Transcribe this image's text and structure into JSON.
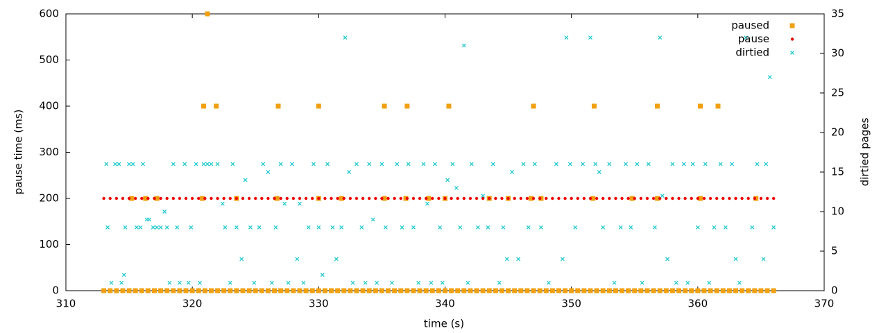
{
  "chart_data": {
    "type": "scatter",
    "xlabel": "time (s)",
    "ylabel": "pause time (ms)",
    "y2label": "dirtied pages",
    "xlim": [
      310,
      370
    ],
    "xticks": [
      310,
      320,
      330,
      340,
      350,
      360,
      370
    ],
    "ylim": [
      0,
      600
    ],
    "yticks": [
      0,
      100,
      200,
      300,
      400,
      500,
      600
    ],
    "y2lim": [
      0,
      35
    ],
    "y2ticks": [
      0,
      5,
      10,
      15,
      20,
      25,
      30,
      35
    ],
    "grid": false,
    "legend": "top-right",
    "series": [
      {
        "name": "paused",
        "color": "#f0a010",
        "marker": "square",
        "x": [
          313,
          313.5,
          314,
          314.5,
          315,
          315.5,
          316,
          316.5,
          317,
          317.5,
          318,
          318.5,
          319,
          319.5,
          320,
          320.5,
          321,
          321.5,
          322,
          322.5,
          323,
          323.5,
          324,
          324.5,
          325,
          325.5,
          326,
          326.5,
          327,
          327.5,
          328,
          328.5,
          329,
          329.5,
          330,
          330.5,
          331,
          331.5,
          332,
          332.5,
          333,
          333.5,
          334,
          334.5,
          335,
          335.5,
          336,
          336.5,
          337,
          337.5,
          338,
          338.5,
          339,
          339.5,
          340,
          340.5,
          341,
          341.5,
          342,
          342.5,
          343,
          343.5,
          344,
          344.5,
          345,
          345.5,
          346,
          346.5,
          347,
          347.5,
          348,
          348.5,
          349,
          349.5,
          350,
          350.5,
          351,
          351.5,
          352,
          352.5,
          353,
          353.5,
          354,
          354.5,
          355,
          355.5,
          356,
          356.5,
          357,
          357.5,
          358,
          358.5,
          359,
          359.5,
          360,
          360.5,
          361,
          361.5,
          362,
          362.5,
          363,
          363.5,
          364,
          364.5,
          365,
          365.5,
          366,
          320.9,
          321.2,
          321.9,
          326.8,
          330,
          335.2,
          337,
          340.3,
          347,
          351.8,
          356.8,
          360.2,
          361.6,
          315.2,
          316.3,
          317.2,
          320.8,
          323.5,
          326.7,
          330,
          331.8,
          335.2,
          336.9,
          338.7,
          340,
          343.5,
          345,
          346.8,
          347.6,
          351.7,
          354.8,
          356.8,
          360.2,
          364.6
        ],
        "values": [
          0,
          0,
          0,
          0,
          0,
          0,
          0,
          0,
          0,
          0,
          0,
          0,
          0,
          0,
          0,
          0,
          0,
          0,
          0,
          0,
          0,
          0,
          0,
          0,
          0,
          0,
          0,
          0,
          0,
          0,
          0,
          0,
          0,
          0,
          0,
          0,
          0,
          0,
          0,
          0,
          0,
          0,
          0,
          0,
          0,
          0,
          0,
          0,
          0,
          0,
          0,
          0,
          0,
          0,
          0,
          0,
          0,
          0,
          0,
          0,
          0,
          0,
          0,
          0,
          0,
          0,
          0,
          0,
          0,
          0,
          0,
          0,
          0,
          0,
          0,
          0,
          0,
          0,
          0,
          0,
          0,
          0,
          0,
          0,
          0,
          0,
          0,
          0,
          0,
          0,
          0,
          0,
          0,
          0,
          0,
          0,
          0,
          0,
          0,
          0,
          0,
          0,
          0,
          0,
          0,
          0,
          0,
          400,
          600,
          400,
          400,
          400,
          400,
          400,
          400,
          400,
          400,
          400,
          400,
          400,
          200,
          200,
          200,
          200,
          200,
          200,
          200,
          200,
          200,
          200,
          200,
          200,
          200,
          200,
          200,
          200,
          200,
          200,
          200,
          200,
          200
        ]
      },
      {
        "name": "pause",
        "color": "#ee0000",
        "marker": "circle",
        "x": [
          313,
          313.5,
          314,
          314.5,
          315,
          315.5,
          316,
          316.5,
          317,
          317.5,
          318,
          318.5,
          319,
          319.5,
          320,
          320.5,
          321,
          321.5,
          322,
          322.5,
          323,
          323.5,
          324,
          324.5,
          325,
          325.5,
          326,
          326.5,
          327,
          327.5,
          328,
          328.5,
          329,
          329.5,
          330,
          330.5,
          331,
          331.5,
          332,
          332.5,
          333,
          333.5,
          334,
          334.5,
          335,
          335.5,
          336,
          336.5,
          337,
          337.5,
          338,
          338.5,
          339,
          339.5,
          340,
          340.5,
          341,
          341.5,
          342,
          342.5,
          343,
          343.5,
          344,
          344.5,
          345,
          345.5,
          346,
          346.5,
          347,
          347.5,
          348,
          348.5,
          349,
          349.5,
          350,
          350.5,
          351,
          351.5,
          352,
          352.5,
          353,
          353.5,
          354,
          354.5,
          355,
          355.5,
          356,
          356.5,
          357,
          357.5,
          358,
          358.5,
          359,
          359.5,
          360,
          360.5,
          361,
          361.5,
          362,
          362.5,
          363,
          363.5,
          364,
          364.5,
          365,
          365.5,
          366
        ],
        "values": [
          200,
          200,
          200,
          200,
          200,
          200,
          200,
          200,
          200,
          200,
          200,
          200,
          200,
          200,
          200,
          200,
          200,
          200,
          200,
          200,
          200,
          200,
          200,
          200,
          200,
          200,
          200,
          200,
          200,
          200,
          200,
          200,
          200,
          200,
          200,
          200,
          200,
          200,
          200,
          200,
          200,
          200,
          200,
          200,
          200,
          200,
          200,
          200,
          200,
          200,
          200,
          200,
          200,
          200,
          200,
          200,
          200,
          200,
          200,
          200,
          200,
          200,
          200,
          200,
          200,
          200,
          200,
          200,
          200,
          200,
          200,
          200,
          200,
          200,
          200,
          200,
          200,
          200,
          200,
          200,
          200,
          200,
          200,
          200,
          200,
          200,
          200,
          200,
          200,
          200,
          200,
          200,
          200,
          200,
          200,
          200,
          200,
          200,
          200,
          200,
          200,
          200,
          200,
          200,
          200,
          200,
          200
        ]
      },
      {
        "name": "dirtied",
        "color": "#22c8d0",
        "marker": "cross",
        "axis": "y2",
        "x": [
          313.2,
          313.3,
          313.6,
          313.9,
          314.2,
          314.4,
          314.6,
          314.7,
          315.0,
          315.3,
          315.6,
          315.9,
          316.1,
          316.4,
          316.6,
          316.9,
          317.2,
          317.5,
          317.8,
          318.0,
          318.2,
          318.5,
          318.8,
          319.0,
          319.4,
          319.7,
          319.9,
          320.3,
          320.6,
          320.9,
          321.2,
          321.5,
          322.0,
          322.4,
          322.6,
          323.0,
          323.2,
          323.5,
          323.9,
          324.2,
          324.6,
          324.9,
          325.3,
          325.6,
          326.0,
          326.3,
          326.6,
          327.0,
          327.3,
          327.6,
          327.9,
          328.3,
          328.5,
          328.8,
          329.2,
          329.6,
          330.0,
          330.3,
          330.7,
          331.1,
          331.4,
          331.8,
          332.1,
          332.4,
          332.7,
          333.0,
          333.4,
          333.7,
          334.0,
          334.3,
          334.6,
          335.0,
          335.3,
          335.8,
          336.2,
          336.6,
          337.1,
          337.5,
          337.9,
          338.3,
          338.6,
          338.9,
          339.2,
          339.6,
          339.8,
          340.2,
          340.6,
          340.9,
          341.2,
          341.5,
          341.8,
          342.1,
          342.6,
          343.0,
          343.4,
          343.8,
          344.3,
          344.6,
          344.9,
          345.3,
          345.8,
          346.2,
          346.6,
          347.1,
          347.6,
          348.2,
          348.8,
          349.3,
          349.6,
          349.9,
          350.3,
          350.9,
          351.5,
          351.9,
          352.2,
          352.5,
          353.0,
          353.4,
          353.9,
          354.3,
          354.7,
          355.2,
          355.6,
          356.1,
          356.6,
          357.0,
          357.2,
          357.6,
          358.0,
          358.3,
          358.9,
          359.2,
          359.6,
          360.0,
          360.6,
          360.9,
          361.3,
          361.8,
          362.2,
          362.7,
          363.0,
          363.3,
          363.8,
          364.3,
          364.7,
          365.2,
          365.4,
          365.7,
          366.0
        ],
        "values": [
          16,
          8,
          1,
          16,
          16,
          1,
          2,
          8,
          16,
          16,
          8,
          8,
          16,
          9,
          9,
          8,
          8,
          8,
          10,
          8,
          1,
          16,
          8,
          1,
          16,
          1,
          8,
          16,
          1,
          16,
          16,
          16,
          16,
          11,
          8,
          1,
          16,
          8,
          4,
          14,
          8,
          1,
          8,
          16,
          15,
          1,
          8,
          16,
          11,
          1,
          16,
          4,
          11,
          1,
          8,
          16,
          8,
          2,
          16,
          8,
          4,
          8,
          32,
          15,
          1,
          16,
          8,
          1,
          16,
          9,
          1,
          16,
          8,
          1,
          16,
          8,
          16,
          8,
          1,
          16,
          11,
          1,
          16,
          8,
          1,
          14,
          16,
          13,
          8,
          31,
          1,
          16,
          8,
          12,
          8,
          16,
          1,
          8,
          4,
          15,
          4,
          16,
          8,
          16,
          8,
          1,
          16,
          4,
          32,
          16,
          8,
          16,
          32,
          16,
          15,
          8,
          16,
          1,
          8,
          16,
          8,
          16,
          1,
          16,
          8,
          32,
          12,
          4,
          16,
          1,
          16,
          1,
          16,
          8,
          16,
          1,
          8,
          16,
          8,
          16,
          4,
          1,
          32,
          8,
          16,
          4,
          16,
          27,
          8
        ]
      }
    ]
  }
}
